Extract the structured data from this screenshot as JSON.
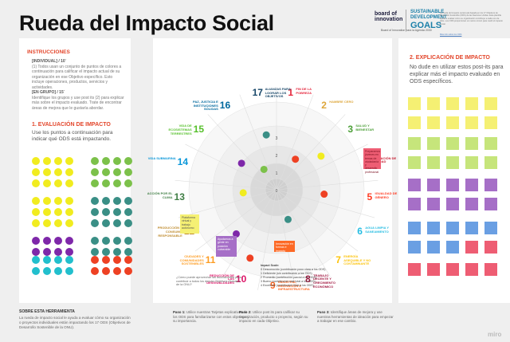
{
  "header": {
    "title": "Rueda del Impacto Social",
    "logo_boi": [
      "board of",
      "innovation"
    ],
    "logo_sdg": [
      "SUSTAINABLE",
      "DEVELOPMENT"
    ],
    "logo_sdg_goals": "GOALS",
    "logo_caption": "Board of Innovation para la Agenda 2030",
    "top_note": "La rueda del impacto social está basada en los 17 Objetivos de Desarrollo Sostenible (ODS) de las Naciones Unidas. Esta plantilla ayuda a evaluar cómo su organización contribuye a cada uno de ellos. Los ODS proporcionan un marco común para medir el impacto social.",
    "top_note_link": "Más info sobre los ODS"
  },
  "left": {
    "instructions_title": "INSTRUCCIONES",
    "individual_label": "[INDIVIDUAL] / 10´",
    "individual_text": "(1) Todos usan un conjunto de puntos de colores a continuación para calificar el impacto actual de su organización en ese Objetivo específico. Esto incluye operaciones, productos, servicios y actividades.",
    "group_label": "[EN GRUPO] / 15´",
    "group_text": "Identifique los grupos y use post its (2) para explicar más sobre el impacto evaluado. Trate de encontrar áreas de mejora que le gustaría abordar.",
    "eval_title": "1. EVALUACIÓN DE IMPACTO",
    "eval_body": "Use los puntos a continuación para indicar qué ODS está impactando."
  },
  "right": {
    "expl_title": "2. EXPLICACIÓN DE IMPACTO",
    "expl_body": "No dude en utilizar estos post-its para explicar más el impacto evaluado en ODS específicos."
  },
  "wheel": {
    "center_labels": [
      "0",
      "1",
      "2",
      "3"
    ],
    "segments": [
      {
        "n": "1",
        "label": "FIN DE LA POBREZA",
        "color": "#e5243b"
      },
      {
        "n": "2",
        "label": "HAMBRE CERO",
        "color": "#dda63a"
      },
      {
        "n": "3",
        "label": "SALUD Y BIENESTAR",
        "color": "#4c9f38"
      },
      {
        "n": "4",
        "label": "EDUCACIÓN DE CALIDAD",
        "color": "#c5192d"
      },
      {
        "n": "5",
        "label": "IGUALDAD DE GÉNERO",
        "color": "#ff3a21"
      },
      {
        "n": "6",
        "label": "AGUA LIMPIA Y SANEAMIENTO",
        "color": "#26bde2"
      },
      {
        "n": "7",
        "label": "ENERGÍA ASEQUIBLE Y NO CONTAMINANTE",
        "color": "#fcc30b"
      },
      {
        "n": "8",
        "label": "TRABAJO DECENTE Y CRECIMIENTO ECONÓMICO",
        "color": "#a21942"
      },
      {
        "n": "9",
        "label": "INDUSTRIA, INNOVACIÓN E INFRAESTRUCTURA",
        "color": "#fd6925"
      },
      {
        "n": "10",
        "label": "REDUCCIÓN DE LAS DESIGUALDADES",
        "color": "#dd1367"
      },
      {
        "n": "11",
        "label": "CIUDADES Y COMUNIDADES SOSTENIBLES",
        "color": "#fd9d24"
      },
      {
        "n": "12",
        "label": "PRODUCCIÓN Y CONSUMO RESPONSABLE",
        "color": "#bf8b2e"
      },
      {
        "n": "13",
        "label": "ACCIÓN POR EL CLIMA",
        "color": "#3f7e44"
      },
      {
        "n": "14",
        "label": "VIDA SUBMARINA",
        "color": "#0a97d9"
      },
      {
        "n": "15",
        "label": "VIDA DE ECOSISTEMAS TERRESTRES",
        "color": "#56c02b"
      },
      {
        "n": "16",
        "label": "PAZ, JUSTICIA E INSTITUCIONES SÓLIDAS",
        "color": "#00689d"
      },
      {
        "n": "17",
        "label": "ALIANZAS PARA LOGRAR LOS OBJETIVOS",
        "color": "#19486a"
      }
    ],
    "chip_text": {
      "education": "Preparamos jóvenes en temas de ciudadanía y desarrollo profesional",
      "cities": "Plataforma virtual y trabajo autónomo",
      "inequality": "Ayudamos a gente en posición vulnerable",
      "industry": "Innovación en formas e impacto",
      "alliances": "¿Cómo puede aprovechar las asociaciones para contribuir a todos los demás Objetivos Globales de la ONU?"
    }
  },
  "impact_scale": {
    "title": "Impact Scale:",
    "items": [
      "0 Desconocido (contribución poco clara a los ODS)",
      "1 Deficiente (sin contribución a los ODS)",
      "2 Promedio (contribución parcial a los ODS)",
      "3 Bueno (contribución casi total a los ODS)",
      "4 Excelente (contribución total a los ODS)"
    ]
  },
  "footer": {
    "about_title": "SOBRE ESTA HERRAMIENTA",
    "about_body": "La rueda de impacto social le ayuda a evaluar cómo su organización o proyectos individuales están impactando los 17 ODS (Objetivos de Desarrollo Sostenible de la ONU).",
    "step1_label": "Paso 1:",
    "step1": "Utilice nuestras Tarjetas explicativas de los ODS para familiarizarse con estos objetivos y su importancia.",
    "step2_label": "Paso 2:",
    "step2": "Utilice post its para calificar su organización, producto o proyecto, según su impacto en cada Objetivo.",
    "step3_label": "Paso 3:",
    "step3": "Identifique áreas de mejora y use nuestras herramientas de ideación para empezar a trabajar en ese cambio.",
    "brand": "miro"
  },
  "colors": {
    "accent": "#e3462b",
    "dot_yellow": "#f1ec1f",
    "dot_green": "#7cc14a",
    "dot_purple": "#7e27a9",
    "dot_teal": "#3a8f86",
    "dot_cyan": "#22bfcd",
    "dot_red": "#ee4123",
    "note_yellow": "#f5f073",
    "note_green": "#c6e57b",
    "note_purple": "#a66fc7",
    "note_blue": "#6a9fe3",
    "note_pink": "#ee5d73"
  }
}
